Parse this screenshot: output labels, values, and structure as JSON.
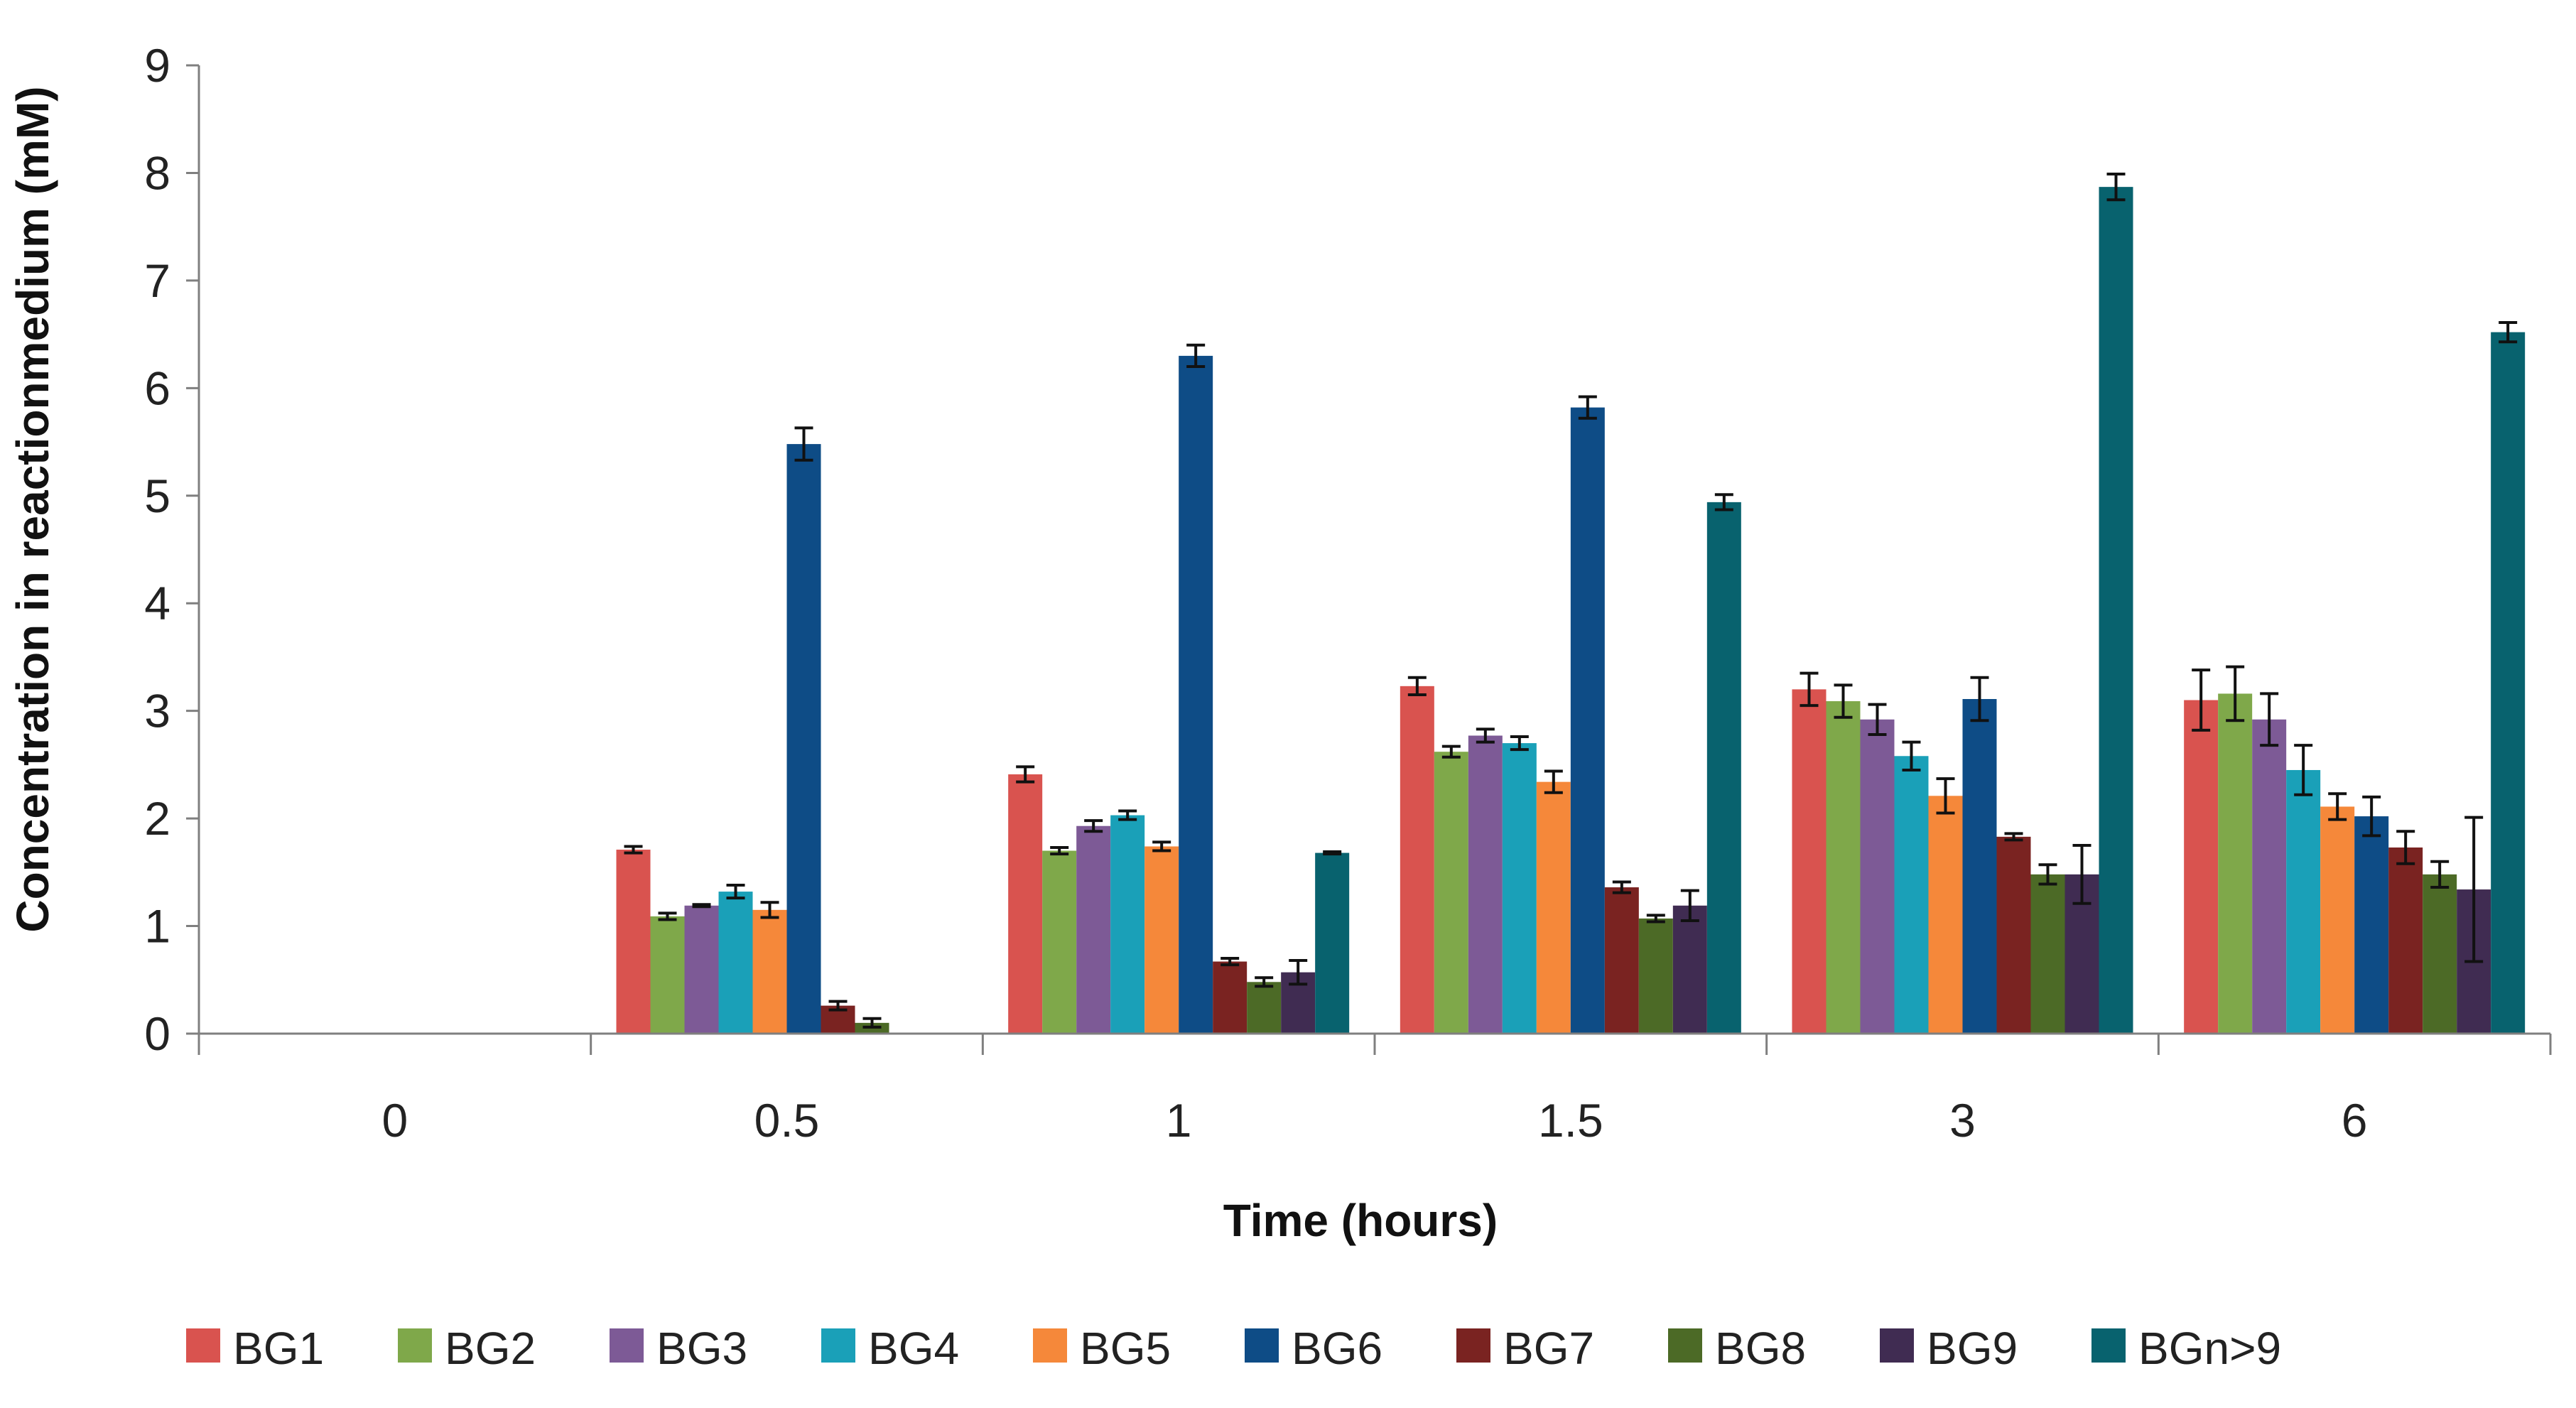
{
  "chart_data": {
    "type": "bar",
    "title": "",
    "xlabel": "Time (hours)",
    "ylabel": "Concentration  in reactionmedium  (mM)",
    "ylim": [
      0,
      9
    ],
    "yticks": [
      0,
      1,
      2,
      3,
      4,
      5,
      6,
      7,
      8,
      9
    ],
    "grid": false,
    "legend_position": "bottom",
    "categories": [
      "0",
      "0.5",
      "1",
      "1.5",
      "3",
      "6"
    ],
    "series": [
      {
        "name": "BG1",
        "color": "#D9534F",
        "values": [
          0,
          1.71,
          2.41,
          3.23,
          3.2,
          3.1
        ],
        "errors": [
          0,
          0.03,
          0.07,
          0.08,
          0.15,
          0.28
        ]
      },
      {
        "name": "BG2",
        "color": "#7FA84A",
        "values": [
          0,
          1.09,
          1.7,
          2.62,
          3.09,
          3.16
        ],
        "errors": [
          0,
          0.03,
          0.03,
          0.05,
          0.15,
          0.25
        ]
      },
      {
        "name": "BG3",
        "color": "#7D5A96",
        "values": [
          0,
          1.19,
          1.93,
          2.77,
          2.92,
          2.92
        ],
        "errors": [
          0,
          0.01,
          0.05,
          0.06,
          0.14,
          0.24
        ]
      },
      {
        "name": "BG4",
        "color": "#1AA0B8",
        "values": [
          0,
          1.32,
          2.03,
          2.7,
          2.58,
          2.45
        ],
        "errors": [
          0,
          0.06,
          0.04,
          0.06,
          0.13,
          0.23
        ]
      },
      {
        "name": "BG5",
        "color": "#F5883A",
        "values": [
          0,
          1.15,
          1.74,
          2.34,
          2.21,
          2.11
        ],
        "errors": [
          0,
          0.07,
          0.04,
          0.1,
          0.16,
          0.12
        ]
      },
      {
        "name": "BG6",
        "color": "#0E4C86",
        "values": [
          0,
          5.48,
          6.3,
          5.82,
          3.11,
          2.02
        ],
        "errors": [
          0,
          0.15,
          0.1,
          0.1,
          0.2,
          0.18
        ]
      },
      {
        "name": "BG7",
        "color": "#7A2321",
        "values": [
          0,
          0.26,
          0.67,
          1.36,
          1.83,
          1.73
        ],
        "errors": [
          0,
          0.04,
          0.03,
          0.05,
          0.03,
          0.15
        ]
      },
      {
        "name": "BG8",
        "color": "#4C6A26",
        "values": [
          0,
          0.1,
          0.48,
          1.07,
          1.48,
          1.48
        ],
        "errors": [
          0,
          0.04,
          0.04,
          0.03,
          0.09,
          0.12
        ]
      },
      {
        "name": "BG9",
        "color": "#402C52",
        "values": [
          0,
          0,
          0.57,
          1.19,
          1.48,
          1.34
        ],
        "errors": [
          0,
          0,
          0.11,
          0.14,
          0.27,
          0.67
        ]
      },
      {
        "name": "BGn>9",
        "color": "#08626E",
        "values": [
          0,
          0,
          1.68,
          4.94,
          7.87,
          6.52
        ],
        "errors": [
          0,
          0,
          0.01,
          0.07,
          0.12,
          0.09
        ]
      }
    ]
  }
}
